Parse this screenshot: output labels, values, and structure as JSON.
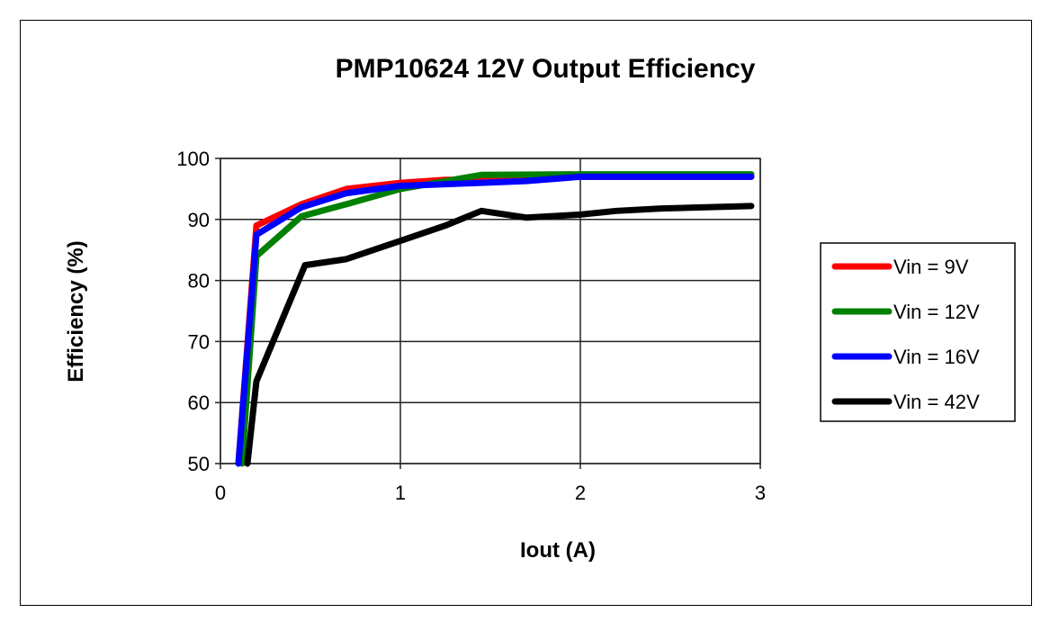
{
  "chart_data": {
    "type": "line",
    "title": "PMP10624 12V Output Efficiency",
    "xlabel": "Iout (A)",
    "ylabel": "Efficiency (%)",
    "xlim": [
      0,
      3
    ],
    "ylim": [
      50,
      100
    ],
    "xticks": [
      "0",
      "1",
      "2",
      "3"
    ],
    "yticks": [
      "50",
      "60",
      "70",
      "80",
      "90",
      "100"
    ],
    "grid": true,
    "legend_position": "right",
    "series": [
      {
        "name": "Vin = 9V",
        "color": "#ff0000",
        "points": [
          [
            0.1,
            50
          ],
          [
            0.2,
            89
          ],
          [
            0.45,
            92.5
          ],
          [
            0.7,
            95
          ],
          [
            1,
            96
          ],
          [
            1.25,
            96.5
          ],
          [
            1.5,
            96.5
          ],
          [
            2,
            97
          ],
          [
            2.95,
            97
          ]
        ]
      },
      {
        "name": "Vin = 12V",
        "color": "#008000",
        "points": [
          [
            0.12,
            50
          ],
          [
            0.2,
            84
          ],
          [
            0.45,
            90.5
          ],
          [
            0.7,
            92.5
          ],
          [
            1,
            95
          ],
          [
            1.45,
            97.3
          ],
          [
            2,
            97.4
          ],
          [
            2.95,
            97.4
          ]
        ]
      },
      {
        "name": "Vin = 16V",
        "color": "#0000ff",
        "points": [
          [
            0.1,
            50
          ],
          [
            0.2,
            87.5
          ],
          [
            0.45,
            92
          ],
          [
            0.7,
            94.3
          ],
          [
            1,
            95.5
          ],
          [
            1.45,
            96
          ],
          [
            1.7,
            96.3
          ],
          [
            2,
            97
          ],
          [
            2.95,
            97
          ]
        ]
      },
      {
        "name": "Vin = 42V",
        "color": "#000000",
        "points": [
          [
            0.15,
            50
          ],
          [
            0.2,
            63.5
          ],
          [
            0.47,
            82.5
          ],
          [
            0.7,
            83.5
          ],
          [
            1,
            86.5
          ],
          [
            1.25,
            89
          ],
          [
            1.45,
            91.4
          ],
          [
            1.7,
            90.3
          ],
          [
            2,
            90.8
          ],
          [
            2.2,
            91.4
          ],
          [
            2.45,
            91.8
          ],
          [
            2.95,
            92.2
          ]
        ]
      }
    ]
  }
}
